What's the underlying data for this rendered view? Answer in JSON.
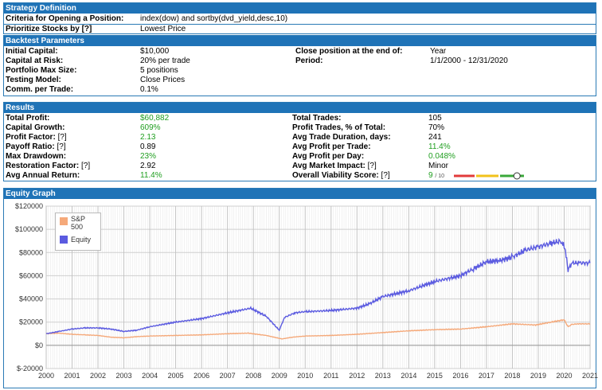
{
  "strategy": {
    "title": "Strategy Definition",
    "criteria_label": "Criteria for Opening a Position:",
    "criteria_value": "index(dow) and sortby(dvd_yield,desc,10)",
    "prioritize_label": "Prioritize Stocks by",
    "prioritize_link": "[?]",
    "prioritize_value": "Lowest Price"
  },
  "backtest": {
    "title": "Backtest Parameters",
    "left": [
      {
        "label": "Initial Capital:",
        "value": "$10,000"
      },
      {
        "label": "Capital at Risk:",
        "value": "20% per trade"
      },
      {
        "label": "Portfolio Max Size:",
        "value": "5 positions"
      },
      {
        "label": "Testing Model:",
        "value": "Close Prices"
      },
      {
        "label": "Comm. per Trade:",
        "value": "0.1%"
      }
    ],
    "right": [
      {
        "label": "Close position at the end of:",
        "value": "Year"
      },
      {
        "label": "Period:",
        "value": "1/1/2000 - 12/31/2020"
      }
    ]
  },
  "results": {
    "title": "Results",
    "left": [
      {
        "label": "Total Profit:",
        "link": "",
        "value": "$60,882",
        "green": true
      },
      {
        "label": "Capital Growth:",
        "link": "",
        "value": "609%",
        "green": true
      },
      {
        "label": "Profit Factor:",
        "link": "[?]",
        "value": "2.13",
        "green": true
      },
      {
        "label": "Payoff Ratio:",
        "link": "[?]",
        "value": "0.89",
        "green": false
      },
      {
        "label": "Max Drawdown:",
        "link": "",
        "value": "23%",
        "green": true
      },
      {
        "label": "Restoration Factor:",
        "link": "[?]",
        "value": "2.92",
        "green": false
      },
      {
        "label": "Avg Annual Return:",
        "link": "",
        "value": "11.4%",
        "green": true
      }
    ],
    "right": [
      {
        "label": "Total Trades:",
        "link": "",
        "value": "105",
        "green": false
      },
      {
        "label": "Profit Trades, % of Total:",
        "link": "",
        "value": "70%",
        "green": false
      },
      {
        "label": "Avg Trade Duration, days:",
        "link": "",
        "value": "241",
        "green": false
      },
      {
        "label": "Avg Profit per Trade:",
        "link": "",
        "value": "11.4%",
        "green": true
      },
      {
        "label": "Avg Profit per Day:",
        "link": "",
        "value": "0.048%",
        "green": true
      },
      {
        "label": "Avg Market Impact:",
        "link": "[?]",
        "value": "Minor",
        "green": false
      },
      {
        "label": "Overall Viability Score:",
        "link": "[?]",
        "value": "",
        "green": false
      }
    ],
    "viability_score": "9",
    "viability_max": "/ 10",
    "viability_fraction": 0.9
  },
  "equity": {
    "title": "Equity Graph",
    "legend_sp": "S&P 500",
    "legend_equity": "Equity",
    "colors": {
      "sp": "#f5a97a",
      "equity": "#5b5be0"
    }
  },
  "chart_data": {
    "type": "line",
    "x_ticks": [
      "2000",
      "2001",
      "2002",
      "2003",
      "2004",
      "2005",
      "2006",
      "2007",
      "2008",
      "2009",
      "2010",
      "2011",
      "2012",
      "2013",
      "2014",
      "2015",
      "2016",
      "2017",
      "2018",
      "2019",
      "2020",
      "2021"
    ],
    "y_ticks": [
      "$120000",
      "$100000",
      "$80000",
      "$60000",
      "$40000",
      "$20000",
      "$0",
      "$-20000"
    ],
    "xlim": [
      2000,
      2021
    ],
    "ylim": [
      -20000,
      120000
    ],
    "grid": true,
    "legend_position": "top-left",
    "series": [
      {
        "name": "S&P 500",
        "color": "#f5a97a",
        "x": [
          2000,
          2000.5,
          2001,
          2001.5,
          2002,
          2002.5,
          2003,
          2003.5,
          2004,
          2005,
          2006,
          2007,
          2007.8,
          2008.5,
          2009.1,
          2009.5,
          2010,
          2011,
          2012,
          2013,
          2014,
          2015,
          2016,
          2017,
          2018,
          2018.9,
          2019.5,
          2020.0,
          2020.15,
          2020.3,
          2020.5,
          2021
        ],
        "y": [
          10000,
          10500,
          9500,
          9000,
          8500,
          7000,
          6500,
          7500,
          8000,
          8500,
          9000,
          10000,
          10500,
          8500,
          5500,
          7000,
          8000,
          8500,
          9500,
          11000,
          12500,
          13500,
          14000,
          16000,
          18500,
          17500,
          20000,
          22000,
          16000,
          18000,
          18500,
          18500
        ]
      },
      {
        "name": "Equity",
        "color": "#5b5be0",
        "x": [
          2000,
          2000.5,
          2001,
          2001.5,
          2002,
          2002.5,
          2003,
          2003.5,
          2004,
          2005,
          2006,
          2007,
          2007.9,
          2008.5,
          2009.0,
          2009.2,
          2009.6,
          2010,
          2011,
          2012,
          2012.5,
          2013,
          2014,
          2015,
          2016,
          2016.5,
          2017,
          2017.5,
          2018,
          2018.5,
          2019,
          2019.5,
          2019.9,
          2020.05,
          2020.15,
          2020.3,
          2020.6,
          2021
        ],
        "y": [
          10000,
          12000,
          14000,
          15000,
          15000,
          14000,
          12000,
          13000,
          16000,
          20000,
          23000,
          28000,
          32000,
          25000,
          13000,
          24000,
          28000,
          29000,
          30000,
          32000,
          36000,
          42000,
          47000,
          55000,
          60000,
          66000,
          72000,
          73000,
          76000,
          82000,
          85000,
          88000,
          90000,
          82000,
          65000,
          71000,
          71000,
          71000
        ]
      }
    ]
  }
}
